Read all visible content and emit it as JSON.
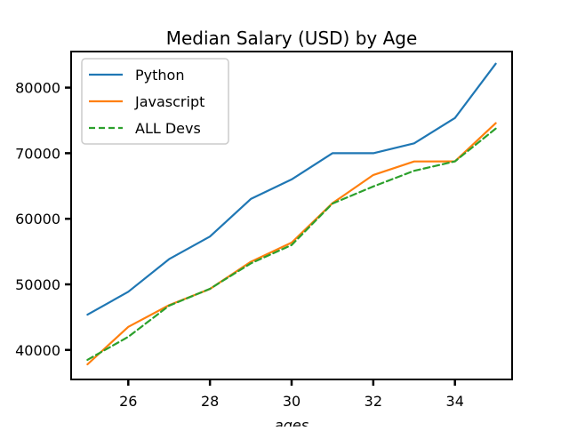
{
  "chart_data": {
    "type": "line",
    "title": "Median Salary (USD) by Age",
    "xlabel": "ages",
    "ylabel": "",
    "xlim": [
      24.6,
      35.4
    ],
    "ylim": [
      35500,
      85500
    ],
    "x_ticks": [
      26,
      28,
      30,
      32,
      34
    ],
    "y_ticks": [
      40000,
      50000,
      60000,
      70000,
      80000
    ],
    "grid": false,
    "legend_position": "upper-left",
    "x": [
      25,
      26,
      27,
      28,
      29,
      30,
      31,
      32,
      33,
      34,
      35
    ],
    "series": [
      {
        "name": "Python",
        "color": "#1f77b4",
        "style": "solid",
        "values": [
          45372,
          48876,
          53850,
          57287,
          63016,
          65998,
          70003,
          70000,
          71496,
          75370,
          83640
        ]
      },
      {
        "name": "Javascript",
        "color": "#ff7f0e",
        "style": "solid",
        "values": [
          37810,
          43515,
          46823,
          49293,
          53437,
          56373,
          62375,
          66674,
          68745,
          68746,
          74583
        ]
      },
      {
        "name": "ALL Devs",
        "color": "#2ca02c",
        "style": "dashed",
        "values": [
          38496,
          42000,
          46752,
          49320,
          53200,
          56000,
          62316,
          64928,
          67317,
          68748,
          73752
        ]
      }
    ]
  }
}
